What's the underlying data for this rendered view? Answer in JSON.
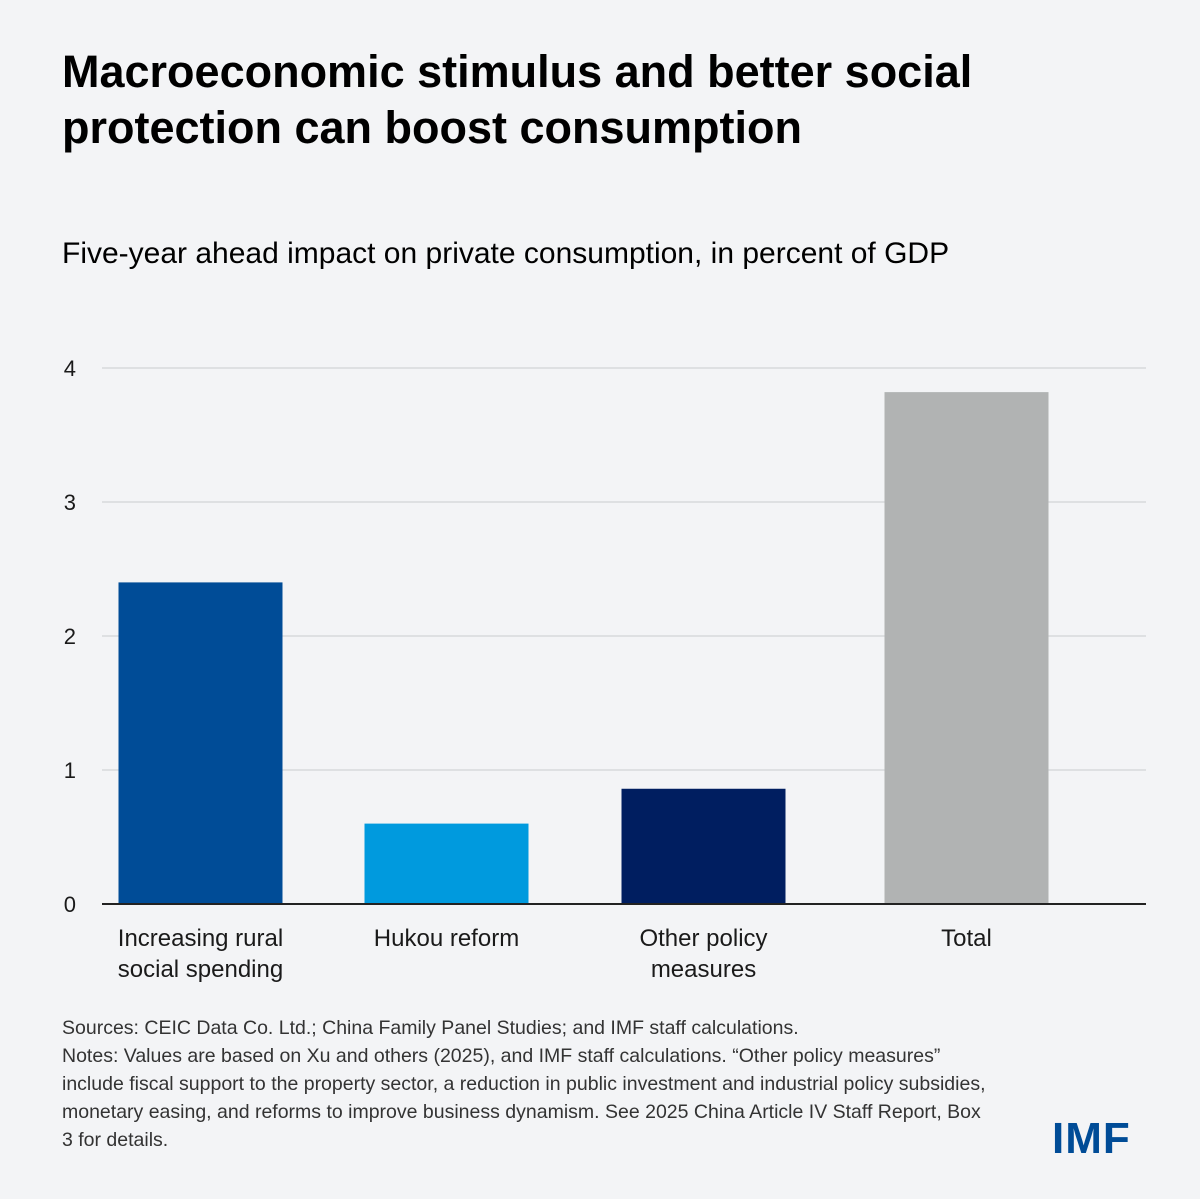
{
  "header": {
    "title": "Macroeconomic stimulus and better social protection can boost consumption",
    "subtitle": "Five-year ahead impact on private consumption, in percent of GDP"
  },
  "chart_data": {
    "type": "bar",
    "categories": [
      [
        "Increasing rural",
        "social spending"
      ],
      [
        "Hukou reform"
      ],
      [
        "Other policy",
        "measures"
      ],
      [
        "Total"
      ]
    ],
    "values": [
      2.4,
      0.6,
      0.86,
      3.82
    ],
    "colors": [
      "#004c97",
      "#009ade",
      "#001e60",
      "#b1b3b3"
    ],
    "ylim": [
      0,
      4
    ],
    "yticks": [
      "0",
      "1",
      "2",
      "3",
      "4"
    ],
    "title": "Five-year ahead impact on private consumption, in percent of GDP",
    "xlabel": "",
    "ylabel": "",
    "grid": true,
    "legend": "none"
  },
  "footer": {
    "sources": "Sources: CEIC Data Co. Ltd.; China Family Panel Studies; and IMF staff calculations.",
    "notes": "Notes: Values are based on  Xu and others (2025), and IMF staff calculations. “Other policy measures” include fiscal support to the property sector, a reduction in public investment and industrial policy subsidies, monetary easing, and reforms to improve business dynamism. See 2025 China Article IV Staff Report, Box 3 for details.",
    "logo": "IMF"
  }
}
